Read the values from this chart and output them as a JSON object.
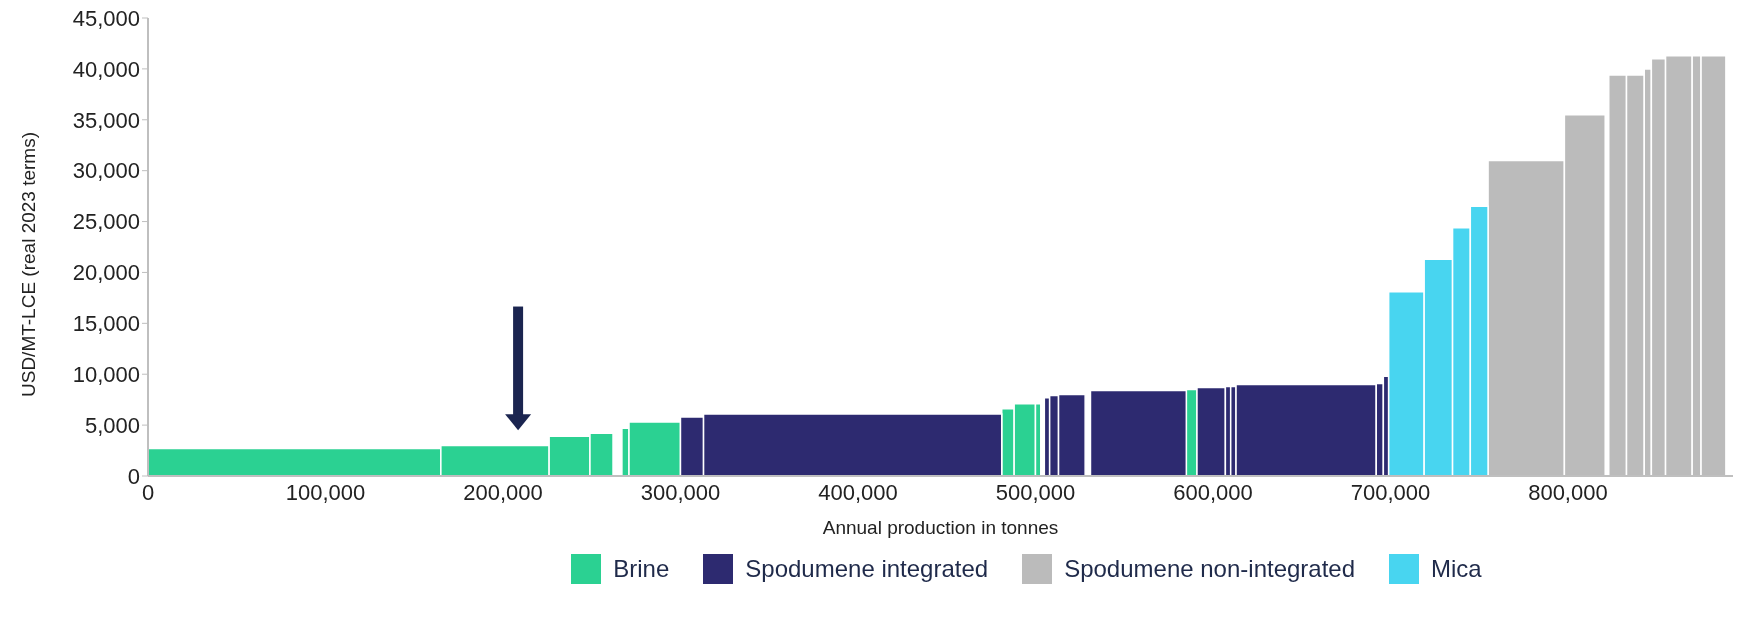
{
  "chart_data": {
    "type": "histogram",
    "xlabel": "Annual production in tonnes",
    "ylabel": "USD/MT-LCE (real 2023 terms)",
    "bins": [
      0,
      165000,
      226000,
      249000,
      262000,
      267000,
      271000,
      300000,
      313000,
      481000,
      488000,
      500000,
      503000,
      505000,
      508000,
      513000,
      528000,
      531000,
      585000,
      591000,
      607000,
      610000,
      613000,
      692000,
      696000,
      699000,
      719000,
      735000,
      745000,
      755000,
      798000,
      821000,
      823000,
      833000,
      843000,
      847000,
      855000,
      870000,
      875000,
      889000
    ],
    "series": [
      {
        "name": "Brine",
        "color": "#2bd192",
        "values": [
          2700,
          3000,
          3900,
          4200,
          null,
          4700,
          5300,
          null,
          null,
          6600,
          7100,
          7100,
          null,
          null,
          null,
          null,
          null,
          null,
          8500,
          null,
          null,
          null,
          null,
          null,
          null,
          null,
          null,
          null,
          null,
          null,
          null,
          null,
          null,
          null,
          null,
          null,
          null,
          null,
          null
        ]
      },
      {
        "name": "Spodumene integrated",
        "color": "#2d2a70",
        "values": [
          null,
          null,
          null,
          null,
          null,
          null,
          null,
          5800,
          6100,
          null,
          null,
          null,
          null,
          7700,
          7900,
          8000,
          null,
          8400,
          null,
          8700,
          8800,
          8800,
          9000,
          9100,
          9800,
          null,
          null,
          null,
          null,
          null,
          null,
          null,
          null,
          null,
          null,
          null,
          null,
          null,
          null
        ]
      },
      {
        "name": "Spodumene non-integrated",
        "color": "#bbbbbb",
        "values": [
          null,
          null,
          null,
          null,
          null,
          null,
          null,
          null,
          null,
          null,
          null,
          null,
          null,
          null,
          null,
          null,
          null,
          null,
          null,
          null,
          null,
          null,
          null,
          null,
          null,
          null,
          null,
          null,
          null,
          31000,
          35500,
          null,
          39400,
          39400,
          40000,
          41000,
          41300,
          41300,
          41300
        ]
      },
      {
        "name": "Mica",
        "color": "#48d5f0",
        "values": [
          null,
          null,
          null,
          null,
          null,
          null,
          null,
          null,
          null,
          null,
          null,
          null,
          null,
          null,
          null,
          null,
          null,
          null,
          null,
          null,
          null,
          null,
          null,
          null,
          null,
          18100,
          21300,
          24400,
          26500,
          null,
          null,
          null,
          null,
          null,
          null,
          null,
          null,
          null,
          null
        ]
      }
    ],
    "xlim": [
      0,
      893000
    ],
    "xticks": [
      0,
      {
        "value": 100000,
        "label": "100,000"
      },
      {
        "value": 200000,
        "label": "200,000"
      },
      {
        "value": 300000,
        "label": "300,000"
      },
      {
        "value": 400000,
        "label": "400,000"
      },
      {
        "value": 500000,
        "label": "500,000"
      },
      {
        "value": 600000,
        "label": "600,000"
      },
      {
        "value": 700000,
        "label": "700,000"
      },
      {
        "value": 800000,
        "label": "800,000"
      }
    ],
    "ylim": [
      0,
      45000
    ],
    "yticks": [
      0,
      {
        "value": 5000,
        "label": "5,000"
      },
      {
        "value": 10000,
        "label": "10,000"
      },
      {
        "value": 15000,
        "label": "15,000"
      },
      {
        "value": 20000,
        "label": "20,000"
      },
      {
        "value": 25000,
        "label": "25,000"
      },
      {
        "value": 30000,
        "label": "30,000"
      },
      {
        "value": 35000,
        "label": "35,000"
      },
      {
        "value": 40000,
        "label": "40,000"
      },
      {
        "value": 45000,
        "label": "45,000"
      }
    ],
    "grid": false,
    "legend": "bottom"
  }
}
